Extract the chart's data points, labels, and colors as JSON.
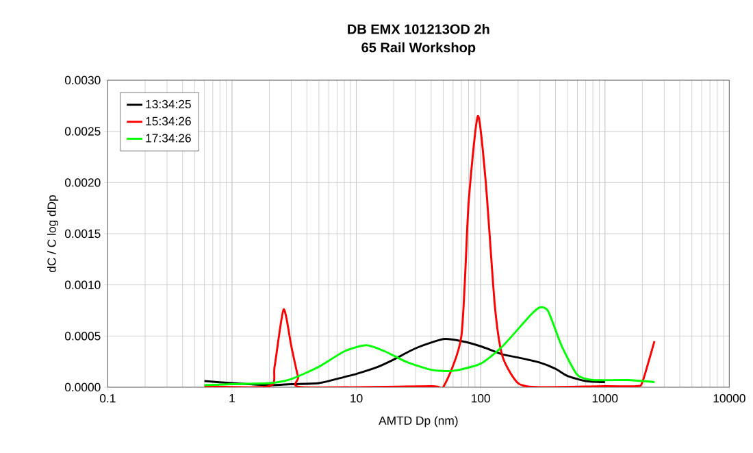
{
  "chart_data": {
    "type": "line",
    "title": "DB EMX 101213OD 2h",
    "subtitle": "65 Rail Workshop",
    "xlabel": "AMTD Dp (nm)",
    "ylabel": "dC / C log dDp",
    "log": "x",
    "grid": true,
    "legend": "top left",
    "marker": "none",
    "line_style": "solid",
    "xlim": [
      0.1,
      10000
    ],
    "xticks": [
      0.1,
      1,
      10,
      100,
      1000,
      10000
    ],
    "ylim": [
      0,
      0.003
    ],
    "yticks": [
      {
        "value": 0,
        "label": "0.0000"
      },
      {
        "value": 0.0005,
        "label": "0.0005"
      },
      {
        "value": 0.001,
        "label": "0.0010"
      },
      {
        "value": 0.0015,
        "label": "0.0015"
      },
      {
        "value": 0.002,
        "label": "0.0020"
      },
      {
        "value": 0.0025,
        "label": "0.0025"
      },
      {
        "value": 0.003,
        "label": "0.0030"
      }
    ],
    "series": [
      {
        "name": "13:34:25",
        "color": "#000000",
        "x": [
          0.6,
          1,
          2,
          3,
          5,
          8,
          10,
          15,
          20,
          30,
          50,
          70,
          100,
          150,
          200,
          300,
          400,
          500,
          700,
          1000
        ],
        "values": [
          6e-05,
          4e-05,
          2e-05,
          3e-05,
          4e-05,
          0.0001,
          0.00013,
          0.0002,
          0.00027,
          0.00038,
          0.00047,
          0.00045,
          0.0004,
          0.00032,
          0.00029,
          0.00024,
          0.00018,
          0.00011,
          6e-05,
          5e-05
        ]
      },
      {
        "name": "15:34:26",
        "color": "#ff0000",
        "x": [
          0.6,
          2,
          2.2,
          2.6,
          3,
          3.4,
          3.7,
          40,
          50,
          70,
          80,
          95,
          110,
          130,
          150,
          200,
          300,
          1000,
          1800,
          2000,
          2500
        ],
        "values": [
          1e-05,
          1e-05,
          0.0002,
          0.00076,
          0.0004,
          0.0001,
          0.0,
          1e-05,
          0.0,
          0.0005,
          0.0018,
          0.00265,
          0.002,
          0.0008,
          0.0003,
          4e-05,
          0.0,
          1e-05,
          1e-05,
          5e-05,
          0.00045
        ]
      },
      {
        "name": "17:34:26",
        "color": "#00ff00",
        "x": [
          0.6,
          1,
          2,
          3,
          5,
          8,
          12,
          17,
          25,
          40,
          60,
          100,
          150,
          250,
          300,
          350,
          450,
          600,
          800,
          1500,
          2500
        ],
        "values": [
          2e-05,
          3e-05,
          4e-05,
          8e-05,
          0.0002,
          0.00035,
          0.00041,
          0.00035,
          0.00025,
          0.00017,
          0.00016,
          0.00023,
          0.0004,
          0.0007,
          0.00078,
          0.00074,
          0.0004,
          0.00012,
          7e-05,
          7e-05,
          5e-05
        ]
      }
    ]
  }
}
